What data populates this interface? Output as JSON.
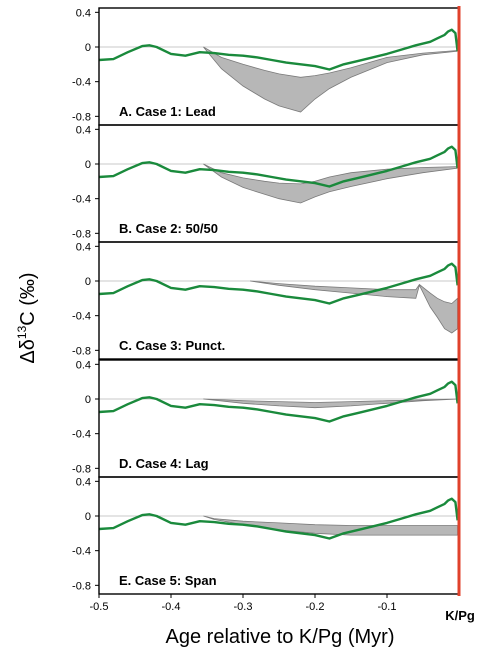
{
  "figure": {
    "ylabel_prefix": "Δδ",
    "ylabel_sup": "13",
    "ylabel_suffix": "C  (‰)",
    "xlabel": "Age relative to K/Pg (Myr)",
    "boundary_label": "K/Pg",
    "colors": {
      "signal_line": "#1a8a3c",
      "envelope_fill": "#b7b7b7",
      "envelope_stroke": "#7a7a7a",
      "zero_line": "#c9c9c9",
      "boundary_line": "#e0412b",
      "frame": "#000000"
    }
  },
  "chart_data": [
    {
      "type": "area",
      "title": "A. Case 1: Lead",
      "xlim": [
        -0.5,
        0.0
      ],
      "ylim": [
        -0.9,
        0.45
      ],
      "yticks": [
        0.4,
        0,
        -0.4,
        -0.8
      ],
      "ytick_labels": [
        "0.4",
        "0",
        "-0.4",
        "-0.8"
      ],
      "series": [
        {
          "x": [
            -0.5,
            -0.48,
            -0.46,
            -0.44,
            -0.43,
            -0.42,
            -0.4,
            -0.38,
            -0.36,
            -0.34,
            -0.32,
            -0.3,
            -0.28,
            -0.26,
            -0.24,
            -0.22,
            -0.2,
            -0.18,
            -0.16,
            -0.14,
            -0.12,
            -0.1,
            -0.08,
            -0.06,
            -0.04,
            -0.03,
            -0.02,
            -0.015,
            -0.01,
            -0.005,
            -0.002
          ],
          "y": [
            -0.15,
            -0.14,
            -0.06,
            0.01,
            0.02,
            0.0,
            -0.08,
            -0.1,
            -0.06,
            -0.07,
            -0.09,
            -0.1,
            -0.12,
            -0.15,
            -0.18,
            -0.2,
            -0.22,
            -0.26,
            -0.2,
            -0.16,
            -0.12,
            -0.08,
            -0.03,
            0.02,
            0.06,
            0.1,
            0.14,
            0.18,
            0.2,
            0.16,
            -0.05
          ]
        },
        {
          "x": [
            -0.355,
            -0.33,
            -0.3,
            -0.27,
            -0.25,
            -0.22,
            -0.2,
            -0.18,
            -0.15,
            -0.1,
            -0.05,
            -0.003
          ],
          "lower": [
            0.0,
            -0.25,
            -0.45,
            -0.6,
            -0.68,
            -0.75,
            -0.6,
            -0.48,
            -0.35,
            -0.18,
            -0.09,
            -0.05
          ],
          "upper": [
            0.0,
            -0.12,
            -0.2,
            -0.27,
            -0.31,
            -0.35,
            -0.33,
            -0.3,
            -0.24,
            -0.12,
            -0.07,
            -0.04
          ]
        }
      ]
    },
    {
      "type": "area",
      "title": "B. Case 2: 50/50",
      "xlim": [
        -0.5,
        0.0
      ],
      "ylim": [
        -0.9,
        0.45
      ],
      "yticks": [
        0.4,
        0,
        -0.4,
        -0.8
      ],
      "ytick_labels": [
        "0.4",
        "0",
        "-0.4",
        "-0.8"
      ],
      "series": [
        {
          "x": [
            -0.5,
            -0.48,
            -0.46,
            -0.44,
            -0.43,
            -0.42,
            -0.4,
            -0.38,
            -0.36,
            -0.34,
            -0.32,
            -0.3,
            -0.28,
            -0.26,
            -0.24,
            -0.22,
            -0.2,
            -0.18,
            -0.16,
            -0.14,
            -0.12,
            -0.1,
            -0.08,
            -0.06,
            -0.04,
            -0.03,
            -0.02,
            -0.015,
            -0.01,
            -0.005,
            -0.002
          ],
          "y": [
            -0.15,
            -0.14,
            -0.06,
            0.01,
            0.02,
            0.0,
            -0.08,
            -0.1,
            -0.06,
            -0.07,
            -0.09,
            -0.1,
            -0.12,
            -0.15,
            -0.18,
            -0.2,
            -0.22,
            -0.26,
            -0.2,
            -0.16,
            -0.12,
            -0.08,
            -0.03,
            0.02,
            0.06,
            0.1,
            0.14,
            0.18,
            0.2,
            0.16,
            -0.05
          ]
        },
        {
          "x": [
            -0.355,
            -0.33,
            -0.3,
            -0.27,
            -0.25,
            -0.22,
            -0.2,
            -0.18,
            -0.15,
            -0.1,
            -0.05,
            -0.003
          ],
          "lower": [
            0.0,
            -0.15,
            -0.27,
            -0.35,
            -0.4,
            -0.45,
            -0.38,
            -0.32,
            -0.26,
            -0.17,
            -0.1,
            -0.05
          ],
          "upper": [
            0.0,
            -0.1,
            -0.16,
            -0.2,
            -0.22,
            -0.23,
            -0.2,
            -0.15,
            -0.1,
            -0.06,
            -0.04,
            -0.03
          ]
        }
      ]
    },
    {
      "type": "area",
      "title": "C. Case 3: Punct.",
      "xlim": [
        -0.5,
        0.0
      ],
      "ylim": [
        -0.9,
        0.45
      ],
      "yticks": [
        0.4,
        0,
        -0.4,
        -0.8
      ],
      "ytick_labels": [
        "0.4",
        "0",
        "-0.4",
        "-0.8"
      ],
      "series": [
        {
          "x": [
            -0.5,
            -0.48,
            -0.46,
            -0.44,
            -0.43,
            -0.42,
            -0.4,
            -0.38,
            -0.36,
            -0.34,
            -0.32,
            -0.3,
            -0.28,
            -0.26,
            -0.24,
            -0.22,
            -0.2,
            -0.18,
            -0.16,
            -0.14,
            -0.12,
            -0.1,
            -0.08,
            -0.06,
            -0.04,
            -0.03,
            -0.02,
            -0.015,
            -0.01,
            -0.005,
            -0.002
          ],
          "y": [
            -0.15,
            -0.14,
            -0.06,
            0.01,
            0.02,
            0.0,
            -0.08,
            -0.1,
            -0.06,
            -0.07,
            -0.09,
            -0.1,
            -0.12,
            -0.15,
            -0.18,
            -0.2,
            -0.22,
            -0.26,
            -0.2,
            -0.16,
            -0.12,
            -0.08,
            -0.03,
            0.02,
            0.06,
            0.1,
            0.14,
            0.18,
            0.2,
            0.16,
            -0.05
          ]
        },
        {
          "x": [
            -0.29,
            -0.25,
            -0.2,
            -0.15,
            -0.1,
            -0.06,
            -0.055,
            -0.04,
            -0.03,
            -0.02,
            -0.01,
            -0.002
          ],
          "lower": [
            0.0,
            -0.05,
            -0.1,
            -0.14,
            -0.18,
            -0.2,
            -0.05,
            -0.3,
            -0.42,
            -0.55,
            -0.6,
            -0.55
          ],
          "upper": [
            0.0,
            -0.03,
            -0.06,
            -0.08,
            -0.1,
            -0.1,
            -0.04,
            -0.14,
            -0.2,
            -0.24,
            -0.26,
            -0.2
          ]
        }
      ]
    },
    {
      "type": "area",
      "title": "D. Case 4: Lag",
      "xlim": [
        -0.5,
        0.0
      ],
      "ylim": [
        -0.9,
        0.45
      ],
      "yticks": [
        0.4,
        0,
        -0.4,
        -0.8
      ],
      "ytick_labels": [
        "0.4",
        "0",
        "-0.4",
        "-0.8"
      ],
      "series": [
        {
          "x": [
            -0.5,
            -0.48,
            -0.46,
            -0.44,
            -0.43,
            -0.42,
            -0.4,
            -0.38,
            -0.36,
            -0.34,
            -0.32,
            -0.3,
            -0.28,
            -0.26,
            -0.24,
            -0.22,
            -0.2,
            -0.18,
            -0.16,
            -0.14,
            -0.12,
            -0.1,
            -0.08,
            -0.06,
            -0.04,
            -0.03,
            -0.02,
            -0.015,
            -0.01,
            -0.005,
            -0.002
          ],
          "y": [
            -0.15,
            -0.14,
            -0.06,
            0.01,
            0.02,
            0.0,
            -0.08,
            -0.1,
            -0.06,
            -0.07,
            -0.09,
            -0.1,
            -0.12,
            -0.15,
            -0.18,
            -0.2,
            -0.22,
            -0.26,
            -0.2,
            -0.16,
            -0.12,
            -0.08,
            -0.03,
            0.02,
            0.06,
            0.1,
            0.14,
            0.18,
            0.2,
            0.16,
            -0.05
          ]
        },
        {
          "x": [
            -0.355,
            -0.3,
            -0.25,
            -0.2,
            -0.15,
            -0.1,
            -0.05,
            0.0
          ],
          "lower": [
            0.0,
            -0.05,
            -0.08,
            -0.1,
            -0.08,
            -0.05,
            -0.02,
            0.0
          ],
          "upper": [
            0.0,
            -0.02,
            -0.03,
            -0.04,
            -0.03,
            -0.02,
            -0.01,
            0.0
          ]
        }
      ]
    },
    {
      "type": "area",
      "title": "E. Case 5: Span",
      "xlim": [
        -0.5,
        0.0
      ],
      "ylim": [
        -0.9,
        0.45
      ],
      "yticks": [
        0.4,
        0,
        -0.4,
        -0.8
      ],
      "ytick_labels": [
        "0.4",
        "0",
        "-0.4",
        "-0.8"
      ],
      "xticks": [
        -0.5,
        -0.4,
        -0.3,
        -0.2,
        -0.1
      ],
      "xtick_labels": [
        "-0.5",
        "-0.4",
        "-0.3",
        "-0.2",
        "-0.1"
      ],
      "series": [
        {
          "x": [
            -0.5,
            -0.48,
            -0.46,
            -0.44,
            -0.43,
            -0.42,
            -0.4,
            -0.38,
            -0.36,
            -0.34,
            -0.32,
            -0.3,
            -0.28,
            -0.26,
            -0.24,
            -0.22,
            -0.2,
            -0.18,
            -0.16,
            -0.14,
            -0.12,
            -0.1,
            -0.08,
            -0.06,
            -0.04,
            -0.03,
            -0.02,
            -0.015,
            -0.01,
            -0.005,
            -0.002
          ],
          "y": [
            -0.15,
            -0.14,
            -0.06,
            0.01,
            0.02,
            0.0,
            -0.08,
            -0.1,
            -0.06,
            -0.07,
            -0.09,
            -0.1,
            -0.12,
            -0.15,
            -0.18,
            -0.2,
            -0.22,
            -0.26,
            -0.2,
            -0.16,
            -0.12,
            -0.08,
            -0.03,
            0.02,
            0.06,
            0.1,
            0.14,
            0.18,
            0.2,
            0.16,
            -0.05
          ]
        },
        {
          "x": [
            -0.355,
            -0.34,
            -0.3,
            -0.25,
            -0.2,
            -0.15,
            -0.1,
            -0.05,
            -0.002
          ],
          "lower": [
            0.0,
            -0.04,
            -0.1,
            -0.16,
            -0.2,
            -0.22,
            -0.22,
            -0.22,
            -0.22
          ],
          "upper": [
            0.0,
            -0.03,
            -0.06,
            -0.08,
            -0.1,
            -0.11,
            -0.11,
            -0.11,
            -0.11
          ]
        }
      ]
    }
  ]
}
